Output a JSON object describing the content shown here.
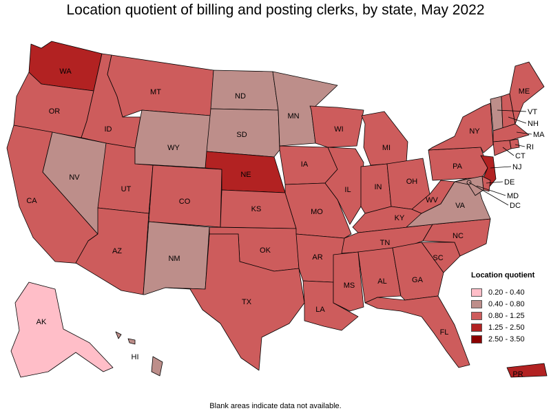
{
  "title": "Location quotient of billing and posting clerks, by state, May 2022",
  "note": "Blank areas indicate data not available.",
  "legend": {
    "title": "Location quotient",
    "items": [
      {
        "label": "0.20 - 0.40",
        "color": "#ffbec8"
      },
      {
        "label": "0.40 - 0.80",
        "color": "#bd8e8a"
      },
      {
        "label": "0.80 - 1.25",
        "color": "#cd5c5c"
      },
      {
        "label": "1.25 - 2.50",
        "color": "#b22222"
      },
      {
        "label": "2.50 - 3.50",
        "color": "#8b0000"
      }
    ]
  },
  "chart_data": {
    "type": "choropleth",
    "title": "Location quotient of billing and posting clerks, by state, May 2022",
    "states": [
      {
        "abbr": "WA",
        "class": "1.25 - 2.50",
        "color": "#b22222"
      },
      {
        "abbr": "OR",
        "class": "0.80 - 1.25",
        "color": "#cd5c5c"
      },
      {
        "abbr": "CA",
        "class": "0.80 - 1.25",
        "color": "#cd5c5c"
      },
      {
        "abbr": "ID",
        "class": "0.80 - 1.25",
        "color": "#cd5c5c"
      },
      {
        "abbr": "NV",
        "class": "0.40 - 0.80",
        "color": "#bd8e8a"
      },
      {
        "abbr": "UT",
        "class": "0.80 - 1.25",
        "color": "#cd5c5c"
      },
      {
        "abbr": "AZ",
        "class": "0.80 - 1.25",
        "color": "#cd5c5c"
      },
      {
        "abbr": "MT",
        "class": "0.80 - 1.25",
        "color": "#cd5c5c"
      },
      {
        "abbr": "WY",
        "class": "0.40 - 0.80",
        "color": "#bd8e8a"
      },
      {
        "abbr": "CO",
        "class": "0.80 - 1.25",
        "color": "#cd5c5c"
      },
      {
        "abbr": "NM",
        "class": "0.40 - 0.80",
        "color": "#bd8e8a"
      },
      {
        "abbr": "ND",
        "class": "0.40 - 0.80",
        "color": "#bd8e8a"
      },
      {
        "abbr": "SD",
        "class": "0.40 - 0.80",
        "color": "#bd8e8a"
      },
      {
        "abbr": "NE",
        "class": "1.25 - 2.50",
        "color": "#b22222"
      },
      {
        "abbr": "KS",
        "class": "0.80 - 1.25",
        "color": "#cd5c5c"
      },
      {
        "abbr": "OK",
        "class": "0.80 - 1.25",
        "color": "#cd5c5c"
      },
      {
        "abbr": "TX",
        "class": "0.80 - 1.25",
        "color": "#cd5c5c"
      },
      {
        "abbr": "MN",
        "class": "0.40 - 0.80",
        "color": "#bd8e8a"
      },
      {
        "abbr": "IA",
        "class": "0.80 - 1.25",
        "color": "#cd5c5c"
      },
      {
        "abbr": "MO",
        "class": "0.80 - 1.25",
        "color": "#cd5c5c"
      },
      {
        "abbr": "AR",
        "class": "0.80 - 1.25",
        "color": "#cd5c5c"
      },
      {
        "abbr": "LA",
        "class": "0.80 - 1.25",
        "color": "#cd5c5c"
      },
      {
        "abbr": "WI",
        "class": "0.80 - 1.25",
        "color": "#cd5c5c"
      },
      {
        "abbr": "IL",
        "class": "0.80 - 1.25",
        "color": "#cd5c5c"
      },
      {
        "abbr": "MI",
        "class": "0.80 - 1.25",
        "color": "#cd5c5c"
      },
      {
        "abbr": "IN",
        "class": "0.80 - 1.25",
        "color": "#cd5c5c"
      },
      {
        "abbr": "OH",
        "class": "0.80 - 1.25",
        "color": "#cd5c5c"
      },
      {
        "abbr": "KY",
        "class": "0.80 - 1.25",
        "color": "#cd5c5c"
      },
      {
        "abbr": "TN",
        "class": "0.80 - 1.25",
        "color": "#cd5c5c"
      },
      {
        "abbr": "MS",
        "class": "0.80 - 1.25",
        "color": "#cd5c5c"
      },
      {
        "abbr": "AL",
        "class": "0.80 - 1.25",
        "color": "#cd5c5c"
      },
      {
        "abbr": "GA",
        "class": "0.80 - 1.25",
        "color": "#cd5c5c"
      },
      {
        "abbr": "FL",
        "class": "0.80 - 1.25",
        "color": "#cd5c5c"
      },
      {
        "abbr": "SC",
        "class": "0.80 - 1.25",
        "color": "#cd5c5c"
      },
      {
        "abbr": "NC",
        "class": "0.80 - 1.25",
        "color": "#cd5c5c"
      },
      {
        "abbr": "VA",
        "class": "0.40 - 0.80",
        "color": "#bd8e8a"
      },
      {
        "abbr": "WV",
        "class": "0.80 - 1.25",
        "color": "#cd5c5c"
      },
      {
        "abbr": "PA",
        "class": "0.80 - 1.25",
        "color": "#cd5c5c"
      },
      {
        "abbr": "NY",
        "class": "0.80 - 1.25",
        "color": "#cd5c5c"
      },
      {
        "abbr": "VT",
        "class": "0.40 - 0.80",
        "color": "#bd8e8a"
      },
      {
        "abbr": "NH",
        "class": "0.80 - 1.25",
        "color": "#cd5c5c"
      },
      {
        "abbr": "ME",
        "class": "0.80 - 1.25",
        "color": "#cd5c5c"
      },
      {
        "abbr": "MA",
        "class": "0.80 - 1.25",
        "color": "#cd5c5c"
      },
      {
        "abbr": "RI",
        "class": "0.80 - 1.25",
        "color": "#cd5c5c"
      },
      {
        "abbr": "CT",
        "class": "0.80 - 1.25",
        "color": "#cd5c5c"
      },
      {
        "abbr": "NJ",
        "class": "1.25 - 2.50",
        "color": "#b22222"
      },
      {
        "abbr": "DE",
        "class": "0.80 - 1.25",
        "color": "#cd5c5c"
      },
      {
        "abbr": "MD",
        "class": "0.40 - 0.80",
        "color": "#bd8e8a"
      },
      {
        "abbr": "DC",
        "class": "0.40 - 0.80",
        "color": "#bd8e8a"
      },
      {
        "abbr": "AK",
        "class": "0.20 - 0.40",
        "color": "#ffbec8"
      },
      {
        "abbr": "HI",
        "class": "0.40 - 0.80",
        "color": "#bd8e8a"
      },
      {
        "abbr": "PR",
        "class": "1.25 - 2.50",
        "color": "#b22222"
      }
    ]
  }
}
